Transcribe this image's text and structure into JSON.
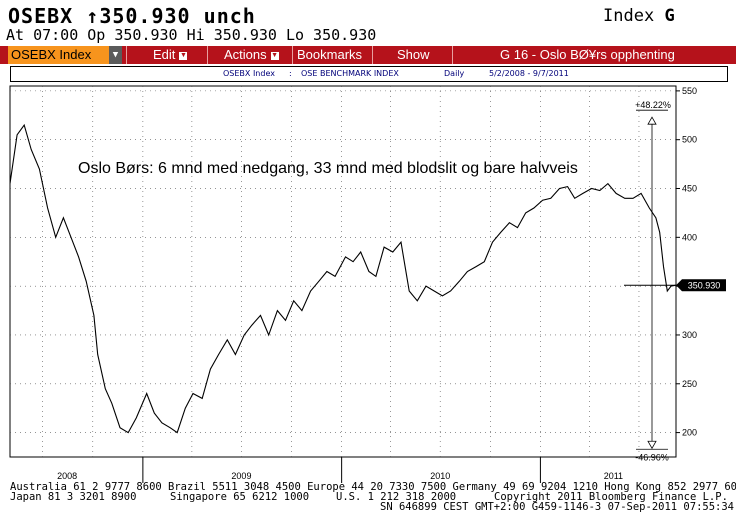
{
  "header": {
    "ticker": "OSEBX",
    "arrow": "↑",
    "price": "350.930",
    "change": "unch",
    "index_label": "Index",
    "index_key": "G",
    "quote_line": "At 07:00  Op 350.930 Hi 350.930 Lo 350.930"
  },
  "toolbar": {
    "security": "OSEBX Index",
    "edit": "Edit",
    "actions": "Actions",
    "bookmarks": "Bookmarks",
    "show": "Show",
    "page": "G 16 - Oslo BØ¥rs opphenting"
  },
  "info_bar": {
    "security": "OSEBX Index",
    "colon": ":",
    "name": "OSE BENCHMARK INDEX",
    "period": "Daily",
    "range": "5/2/2008 - 9/7/2011"
  },
  "colors": {
    "menu_bar": "#b5121b",
    "selected": "#f7941d",
    "line": "#000000"
  },
  "footer": {
    "line1": "Australia 61 2 9777 8600 Brazil 5511 3048 4500 Europe 44 20 7330 7500 Germany 49 69 9204 1210 Hong Kong 852 2977 6000",
    "line2a": "Japan 81 3 3201 8900",
    "line2b": "Singapore 65 6212 1000",
    "line2c": "U.S. 1 212 318 2000",
    "line2d": "Copyright 2011 Bloomberg Finance L.P.",
    "line3": "SN 646899 CEST GMT+2:00 G459-1146-3 07-Sep-2011 07:55:34"
  },
  "chart_data": {
    "type": "line",
    "title": "Oslo Børs: 6 mnd med nedgang, 33 mnd med blodslit og bare halvveis",
    "xlabel": "",
    "ylabel": "",
    "ylim": [
      175,
      555
    ],
    "y_ticks": [
      "200",
      "250",
      "300",
      "350",
      "400",
      "450",
      "500",
      "550"
    ],
    "x_tick_labels": [
      "2008",
      "2009",
      "2010",
      "2011"
    ],
    "last_value_label": "350.930",
    "annotation_up": "+48.22%",
    "annotation_down": "-46.96%",
    "series": [
      {
        "x": [
          "2008-05-02",
          "2008-05-15",
          "2008-05-28",
          "2008-06-10",
          "2008-06-25",
          "2008-07-10",
          "2008-07-25",
          "2008-08-08",
          "2008-08-22",
          "2008-09-05",
          "2008-09-19",
          "2008-10-03",
          "2008-10-10",
          "2008-10-24",
          "2008-11-05",
          "2008-11-20",
          "2008-12-05",
          "2008-12-20",
          "2009-01-08",
          "2009-01-22",
          "2009-02-05",
          "2009-02-20",
          "2009-03-05",
          "2009-03-20",
          "2009-04-03",
          "2009-04-20",
          "2009-05-05",
          "2009-05-20",
          "2009-06-05",
          "2009-06-20",
          "2009-07-06",
          "2009-07-20",
          "2009-08-05",
          "2009-08-20",
          "2009-09-05",
          "2009-09-20",
          "2009-10-05",
          "2009-10-20",
          "2009-11-05",
          "2009-11-20",
          "2009-12-05",
          "2009-12-20",
          "2010-01-08",
          "2010-01-22",
          "2010-02-05",
          "2010-02-20",
          "2010-03-05",
          "2010-03-20",
          "2010-04-05",
          "2010-04-20",
          "2010-05-05",
          "2010-05-20",
          "2010-06-05",
          "2010-06-20",
          "2010-07-05",
          "2010-07-20",
          "2010-08-05",
          "2010-08-20",
          "2010-09-05",
          "2010-09-20",
          "2010-10-05",
          "2010-10-20",
          "2010-11-05",
          "2010-11-20",
          "2010-12-05",
          "2010-12-20",
          "2011-01-05",
          "2011-01-20",
          "2011-02-05",
          "2011-02-20",
          "2011-03-05",
          "2011-03-20",
          "2011-04-05",
          "2011-04-20",
          "2011-05-05",
          "2011-05-20",
          "2011-06-05",
          "2011-06-20",
          "2011-07-05",
          "2011-07-20",
          "2011-08-01",
          "2011-08-08",
          "2011-08-15",
          "2011-08-22",
          "2011-08-29",
          "2011-09-07"
        ],
        "values": [
          455,
          505,
          515,
          490,
          470,
          430,
          400,
          420,
          400,
          380,
          355,
          320,
          280,
          245,
          230,
          205,
          200,
          215,
          240,
          220,
          210,
          205,
          200,
          225,
          240,
          235,
          265,
          280,
          295,
          280,
          300,
          310,
          320,
          300,
          325,
          315,
          335,
          325,
          345,
          355,
          365,
          360,
          380,
          375,
          385,
          365,
          360,
          390,
          385,
          395,
          345,
          335,
          350,
          345,
          340,
          345,
          355,
          365,
          370,
          375,
          395,
          405,
          415,
          410,
          425,
          430,
          438,
          440,
          450,
          452,
          440,
          445,
          450,
          448,
          455,
          445,
          440,
          440,
          445,
          430,
          420,
          405,
          370,
          345,
          350,
          350.93
        ]
      }
    ]
  }
}
